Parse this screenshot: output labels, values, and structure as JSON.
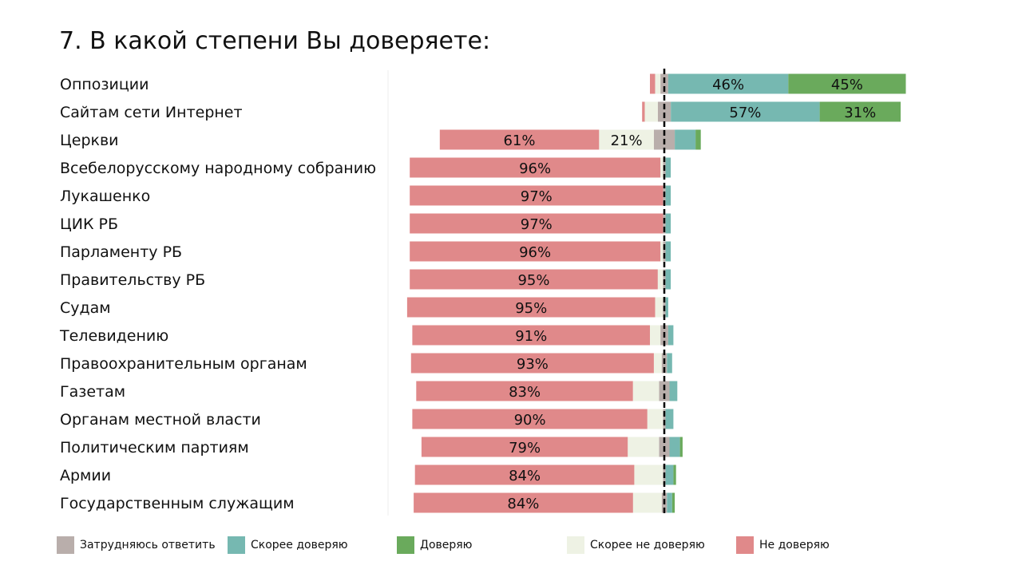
{
  "chart_data": {
    "type": "bar",
    "title": "7. В какой степени Вы доверяете:",
    "orientation": "horizontal",
    "stacking": "diverging",
    "legend_position": "bottom",
    "series": [
      {
        "key": "unsure",
        "name": "Затрудняюсь ответить",
        "color": "#b9aeab"
      },
      {
        "key": "rather_trust",
        "name": "Скорее доверяю",
        "color": "#76b8b1"
      },
      {
        "key": "trust",
        "name": "Доверяю",
        "color": "#6aaa5c"
      },
      {
        "key": "rather_distrust",
        "name": "Скорее не доверяю",
        "color": "#eef2e4"
      },
      {
        "key": "distrust",
        "name": "Не доверяю",
        "color": "#e0898a"
      }
    ],
    "categories": [
      {
        "label": "Оппозиции",
        "distrust": 2,
        "rather_distrust": 2,
        "unsure": 3,
        "rather_trust": 46,
        "trust": 45,
        "labels": {
          "rather_trust": "46%",
          "trust": "45%"
        }
      },
      {
        "label": "Сайтам сети Интернет",
        "distrust": 1,
        "rather_distrust": 5,
        "unsure": 5,
        "rather_trust": 57,
        "trust": 31,
        "labels": {
          "rather_trust": "57%",
          "trust": "31%"
        }
      },
      {
        "label": "Церкви",
        "distrust": 61,
        "rather_distrust": 21,
        "unsure": 8,
        "rather_trust": 8,
        "trust": 2,
        "labels": {
          "distrust": "61%",
          "rather_distrust": "21%"
        }
      },
      {
        "label": "Всебелорусскому народному собранию",
        "distrust": 96,
        "rather_distrust": 1,
        "unsure": 1,
        "rather_trust": 2,
        "trust": 0,
        "labels": {
          "distrust": "96%"
        }
      },
      {
        "label": "Лукашенко",
        "distrust": 97,
        "rather_distrust": 0,
        "unsure": 1,
        "rather_trust": 2,
        "trust": 0,
        "labels": {
          "distrust": "97%"
        }
      },
      {
        "label": "ЦИК РБ",
        "distrust": 97,
        "rather_distrust": 0,
        "unsure": 1,
        "rather_trust": 2,
        "trust": 0,
        "labels": {
          "distrust": "97%"
        }
      },
      {
        "label": "Парламенту РБ",
        "distrust": 96,
        "rather_distrust": 1,
        "unsure": 1,
        "rather_trust": 2,
        "trust": 0,
        "labels": {
          "distrust": "96%"
        }
      },
      {
        "label": "Правительству РБ",
        "distrust": 95,
        "rather_distrust": 2,
        "unsure": 1,
        "rather_trust": 2,
        "trust": 0,
        "labels": {
          "distrust": "95%"
        }
      },
      {
        "label": "Судам",
        "distrust": 95,
        "rather_distrust": 3,
        "unsure": 1,
        "rather_trust": 1,
        "trust": 0,
        "labels": {
          "distrust": "95%"
        }
      },
      {
        "label": "Телевидению",
        "distrust": 91,
        "rather_distrust": 4,
        "unsure": 3,
        "rather_trust": 2,
        "trust": 0,
        "labels": {
          "distrust": "91%"
        }
      },
      {
        "label": "Правоохранительным органам",
        "distrust": 93,
        "rather_distrust": 3,
        "unsure": 2,
        "rather_trust": 2,
        "trust": 0,
        "labels": {
          "distrust": "93%"
        }
      },
      {
        "label": "Газетам",
        "distrust": 83,
        "rather_distrust": 10,
        "unsure": 4,
        "rather_trust": 3,
        "trust": 0,
        "labels": {
          "distrust": "83%"
        }
      },
      {
        "label": "Органам местной власти",
        "distrust": 90,
        "rather_distrust": 6,
        "unsure": 1,
        "rather_trust": 3,
        "trust": 0,
        "labels": {
          "distrust": "90%"
        }
      },
      {
        "label": "Политическим партиям",
        "distrust": 79,
        "rather_distrust": 12,
        "unsure": 4,
        "rather_trust": 4,
        "trust": 1,
        "labels": {
          "distrust": "79%"
        }
      },
      {
        "label": "Армии",
        "distrust": 84,
        "rather_distrust": 11,
        "unsure": 1,
        "rather_trust": 3,
        "trust": 1,
        "labels": {
          "distrust": "84%"
        }
      },
      {
        "label": "Государственным служащим",
        "distrust": 84,
        "rather_distrust": 11,
        "unsure": 2,
        "rather_trust": 2,
        "trust": 1,
        "labels": {
          "distrust": "84%"
        }
      }
    ]
  }
}
